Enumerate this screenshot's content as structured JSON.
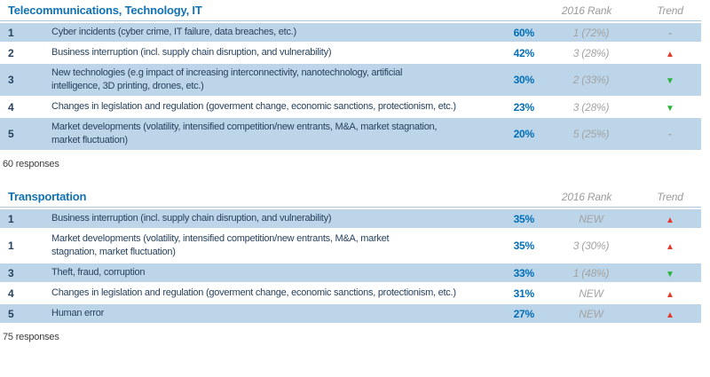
{
  "tables": [
    {
      "title": "Telecommunications, Technology, IT",
      "col_rank2016": "2016 Rank",
      "col_trend": "Trend",
      "responses": "60 responses",
      "rows": [
        {
          "rank": "1",
          "text": "Cyber incidents (cyber crime, IT failure, data breaches, etc.)",
          "pct": "60%",
          "rank2016": "1 (72%)",
          "trend": "flat",
          "trend_glyph": "-",
          "trend_color": "#a3a3a3"
        },
        {
          "rank": "2",
          "text": "Business interruption (incl. supply chain disruption, and vulnerability)",
          "pct": "42%",
          "rank2016": "3 (28%)",
          "trend": "up",
          "trend_glyph": "▲",
          "trend_color": "#e6392e"
        },
        {
          "rank": "3",
          "text": "New technologies (e.g impact of increasing interconnectivity, nanotechnology, artificial\nintelligence, 3D printing, drones, etc.)",
          "pct": "30%",
          "rank2016": "2 (33%)",
          "trend": "down",
          "trend_glyph": "▼",
          "trend_color": "#27b437"
        },
        {
          "rank": "4",
          "text": "Changes in legislation and regulation (goverment change, economic sanctions, protectionism, etc.)",
          "pct": "23%",
          "rank2016": "3 (28%)",
          "trend": "down",
          "trend_glyph": "▼",
          "trend_color": "#27b437"
        },
        {
          "rank": "5",
          "text": "Market developments (volatility, intensified competition/new entrants, M&A, market stagnation,\nmarket fluctuation)",
          "pct": "20%",
          "rank2016": "5 (25%)",
          "trend": "flat",
          "trend_glyph": "-",
          "trend_color": "#a3a3a3"
        }
      ]
    },
    {
      "title": "Transportation",
      "col_rank2016": "2016 Rank",
      "col_trend": "Trend",
      "responses": "75 responses",
      "rows": [
        {
          "rank": "1",
          "text": "Business interruption (incl. supply chain disruption, and vulnerability)",
          "pct": "35%",
          "rank2016": "NEW",
          "trend": "up",
          "trend_glyph": "▲",
          "trend_color": "#e6392e"
        },
        {
          "rank": "1",
          "text": "Market developments (volatility, intensified competition/new entrants, M&A, market\nstagnation, market fluctuation)",
          "pct": "35%",
          "rank2016": "3 (30%)",
          "trend": "up",
          "trend_glyph": "▲",
          "trend_color": "#e6392e"
        },
        {
          "rank": "3",
          "text": "Theft, fraud, corruption",
          "pct": "33%",
          "rank2016": "1 (48%)",
          "trend": "down",
          "trend_glyph": "▼",
          "trend_color": "#27b437"
        },
        {
          "rank": "4",
          "text": "Changes in legislation and regulation (goverment change, economic sanctions, protectionism, etc.)",
          "pct": "31%",
          "rank2016": "NEW",
          "trend": "up",
          "trend_glyph": "▲",
          "trend_color": "#e6392e"
        },
        {
          "rank": "5",
          "text": "Human error",
          "pct": "27%",
          "rank2016": "NEW",
          "trend": "up",
          "trend_glyph": "▲",
          "trend_color": "#e6392e"
        }
      ]
    }
  ],
  "colors": {
    "title_blue": "#1272b4",
    "row_text_navy": "#27425f",
    "pct_blue": "#006fb7",
    "row_shaded_bg": "#bcd5e9",
    "muted_gray": "#a3a3a3",
    "trend_up_red": "#e6392e",
    "trend_down_green": "#27b437"
  }
}
